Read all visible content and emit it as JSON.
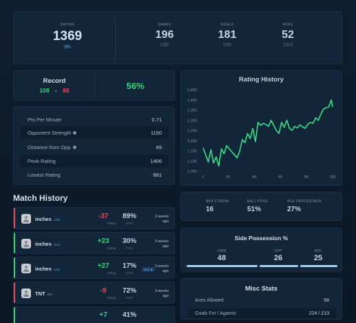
{
  "top": {
    "rating": {
      "label": "RATING",
      "value": "1369",
      "rank": "9th"
    },
    "games": {
      "label": "GAMES",
      "value": "196",
      "rank": "13th"
    },
    "goals": {
      "label": "GOALS",
      "value": "181",
      "rank": "19th"
    },
    "aces": {
      "label": "ACES",
      "value": "52",
      "rank": "23rd"
    }
  },
  "record": {
    "title": "Record",
    "wins": "108",
    "sep": "-",
    "losses": "86",
    "pct": "56%"
  },
  "info": [
    {
      "label": "Pts Per Minute",
      "value": "0.71",
      "info": false
    },
    {
      "label": "Opponent Strength",
      "value": "1150",
      "info": true
    },
    {
      "label": "Distance from Opp",
      "value": "69",
      "info": true
    },
    {
      "label": "Peak Rating",
      "value": "1406",
      "info": false
    },
    {
      "label": "Lowest Rating",
      "value": "881",
      "info": false
    }
  ],
  "chart_data": {
    "type": "line",
    "title": "Rating History",
    "xlabel": "",
    "ylabel": "",
    "xlim": [
      0,
      100
    ],
    "ylim": [
      1050,
      1450
    ],
    "x_ticks": [
      "1",
      "20",
      "40",
      "60",
      "80",
      "100"
    ],
    "y_ticks": [
      "1,450",
      "1,400",
      "1,350",
      "1,300",
      "1,250",
      "1,200",
      "1,150",
      "1,100",
      "1,050"
    ],
    "grid": false,
    "line_color": "#2fe58a",
    "x": [
      1,
      3,
      5,
      7,
      9,
      11,
      13,
      15,
      17,
      19,
      21,
      23,
      25,
      27,
      29,
      31,
      33,
      35,
      37,
      39,
      41,
      43,
      45,
      47,
      49,
      51,
      53,
      55,
      57,
      59,
      61,
      63,
      65,
      67,
      69,
      71,
      73,
      75,
      77,
      79,
      81,
      83,
      85,
      87,
      89,
      91,
      93,
      95,
      97,
      99,
      100
    ],
    "values": [
      1165,
      1130,
      1095,
      1155,
      1090,
      1120,
      1075,
      1160,
      1135,
      1175,
      1160,
      1145,
      1130,
      1115,
      1150,
      1205,
      1190,
      1235,
      1210,
      1260,
      1195,
      1290,
      1275,
      1285,
      1280,
      1270,
      1300,
      1275,
      1250,
      1235,
      1290,
      1265,
      1300,
      1260,
      1250,
      1270,
      1262,
      1278,
      1268,
      1260,
      1280,
      1290,
      1285,
      1312,
      1300,
      1330,
      1355,
      1362,
      1365,
      1400,
      1365
    ]
  },
  "match_history": {
    "title": "Match History",
    "items": [
      {
        "name": "inches",
        "rating": "1291",
        "change": "-37",
        "result": "loss",
        "poss": "89%",
        "rating_label": "Rating",
        "poss_label": "Poss",
        "time": "3 weeks ago",
        "ace": ""
      },
      {
        "name": "inches",
        "rating": "1314",
        "change": "+23",
        "result": "win",
        "poss": "30%",
        "rating_label": "Rating",
        "poss_label": "Poss",
        "time": "3 weeks ago",
        "ace": ""
      },
      {
        "name": "inches",
        "rating": "1341",
        "change": "+27",
        "result": "win",
        "poss": "17%",
        "rating_label": "Rating",
        "poss_label": "Poss",
        "time": "3 weeks ago",
        "ace": "ACE ★"
      },
      {
        "name": "TNT",
        "rating": "993",
        "change": "-9",
        "result": "loss",
        "poss": "72%",
        "rating_label": "Rating",
        "poss_label": "Poss",
        "time": "3 weeks ago",
        "ace": ""
      },
      {
        "name": "",
        "rating": "",
        "change": "+7",
        "result": "win",
        "poss": "41%",
        "rating_label": "",
        "poss_label": "",
        "time": "",
        "ace": ""
      }
    ]
  },
  "streak": {
    "win_streak": {
      "label": "WIN STREAK",
      "value": "16"
    },
    "ball_poss": {
      "label": "BALL POSS",
      "value": "51%"
    },
    "ace_pct": {
      "label": "ACE PERCENTAGE",
      "value": "27%"
    }
  },
  "possession": {
    "title": "Side Possession %",
    "own": {
      "label": "OWN",
      "value": "48"
    },
    "opp": {
      "label": "OPP",
      "value": "26"
    },
    "mid": {
      "label": "MID",
      "value": "25"
    }
  },
  "misc": {
    "title": "Misc Stats",
    "rows": [
      {
        "label": "Aces Allowed",
        "value": "58"
      },
      {
        "label": "Goals For / Against",
        "value": "224 / 213"
      }
    ]
  },
  "colors": {
    "win": "#2fd675",
    "loss": "#f0465a",
    "accent": "#a8cef0"
  }
}
